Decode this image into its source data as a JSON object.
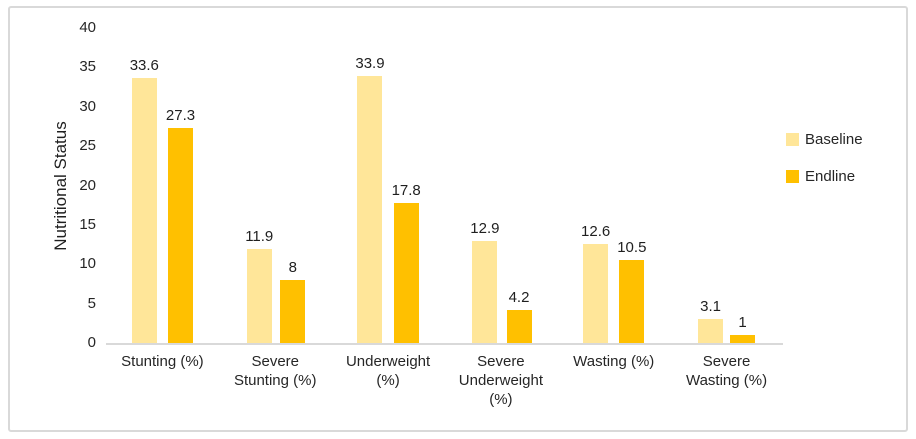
{
  "figure": {
    "background": "#ffffff",
    "border_color": "#d9d9d9"
  },
  "chart_data": {
    "type": "bar",
    "title": "",
    "xlabel": "",
    "ylabel": "Nutritional Status",
    "categories": [
      "Stunting (%)",
      "Severe Stunting (%)",
      "Underweight (%)",
      "Severe Underweight (%)",
      "Wasting (%)",
      "Severe Wasting (%)"
    ],
    "series": [
      {
        "name": "Baseline",
        "color": "#FFE699",
        "values": [
          33.6,
          11.9,
          33.9,
          12.9,
          12.6,
          3.1
        ]
      },
      {
        "name": "Endline",
        "color": "#FFC000",
        "values": [
          27.3,
          8,
          17.8,
          4.2,
          10.5,
          1
        ]
      }
    ],
    "ylim": [
      0,
      40
    ],
    "yticks": [
      0,
      5,
      10,
      15,
      20,
      25,
      30,
      35,
      40
    ],
    "grid": false,
    "legend_position": "right",
    "data_labels": true
  }
}
